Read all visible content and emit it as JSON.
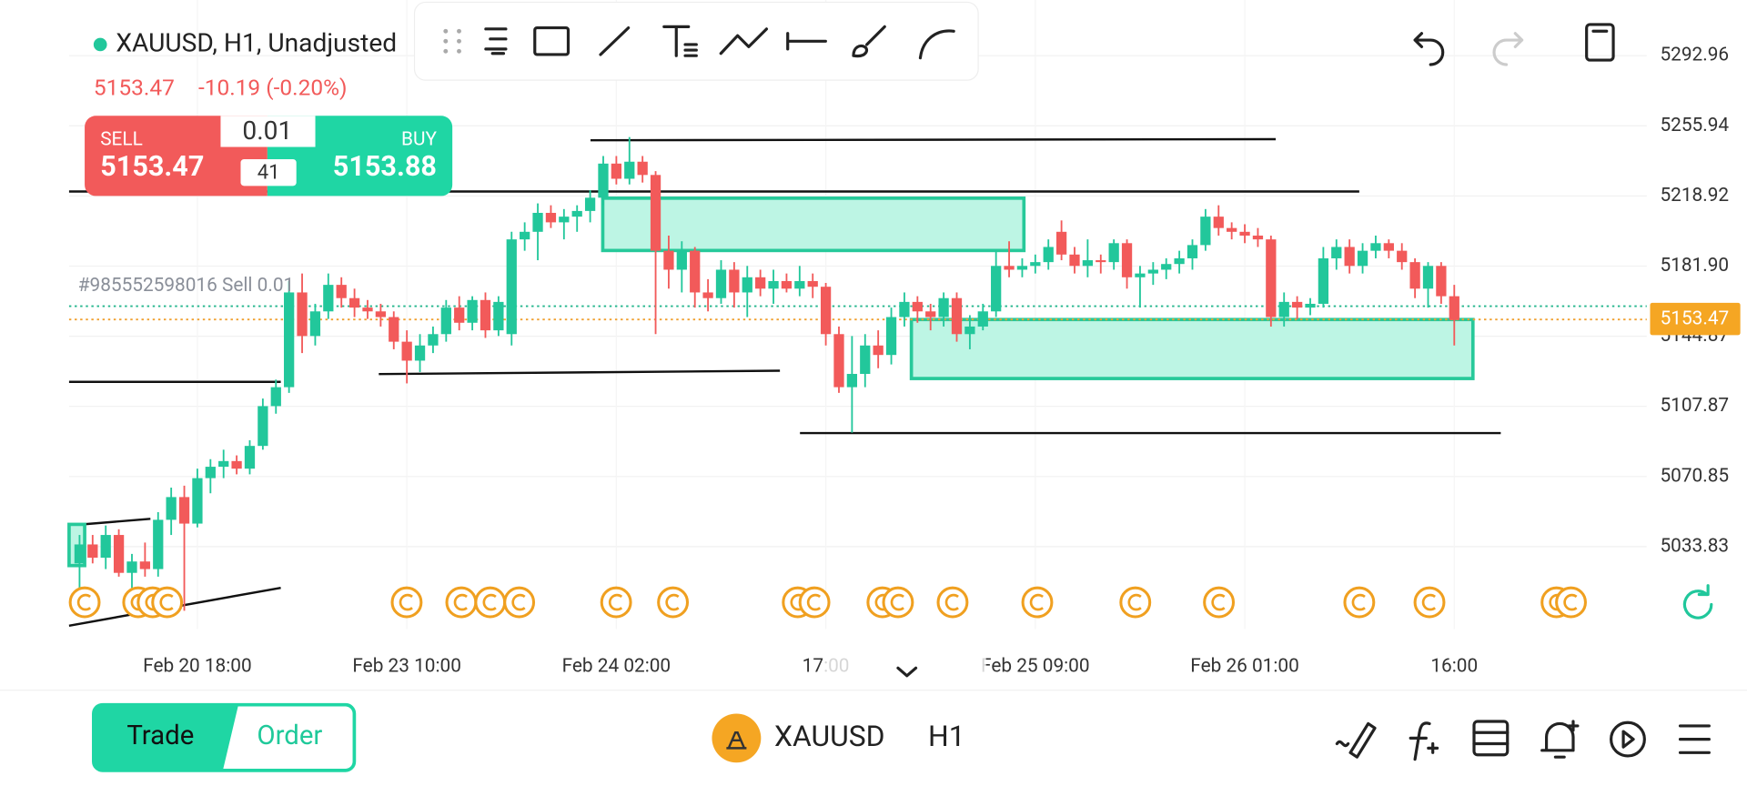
{
  "header": {
    "symbol_title": "XAUUSD, H1, Unadjusted",
    "last_price": "5153.47",
    "change": "-10.19 (-0.20%)"
  },
  "trade_panel": {
    "sell_label": "SELL",
    "sell_price": "5153.47",
    "volume": "0.01",
    "spread": "41",
    "buy_label": "BUY",
    "buy_price": "5153.88"
  },
  "position_label": "#985552598016 Sell 0.01",
  "chart": {
    "type": "candlestick",
    "up_color": "#22c79b",
    "down_color": "#f25a5a",
    "grid": true,
    "ylim": [
      4990.36,
      5322.34
    ],
    "yticks": [
      5292.96,
      5255.94,
      5218.92,
      {
        "value": 5181.9,
        "label": "5181.90"
      },
      5144.87,
      5107.87,
      5070.85,
      5033.83
    ],
    "xlim": [
      -0.8,
      119.7
    ],
    "xticks": [
      {
        "value": 9,
        "label": "Feb 20 18:00"
      },
      {
        "value": 25,
        "label": "Feb 23 10:00"
      },
      {
        "value": 41,
        "label": "Feb 24 02:00"
      },
      {
        "value": 57,
        "label": "17:00"
      },
      {
        "value": 73,
        "label": "Feb 25 09:00"
      },
      {
        "value": 89,
        "label": "Feb 26 01:00"
      },
      {
        "value": 105,
        "label": "16:00"
      }
    ],
    "current_price": 5153.47,
    "candles": [
      [
        5025,
        5040,
        5010,
        5035
      ],
      [
        5035,
        5040,
        5025,
        5028
      ],
      [
        5028,
        5045,
        5022,
        5040
      ],
      [
        5040,
        5043,
        5018,
        5020
      ],
      [
        5020,
        5030,
        5012,
        5026
      ],
      [
        5026,
        5036,
        5018,
        5022
      ],
      [
        5022,
        5052,
        5018,
        5048
      ],
      [
        5048,
        5065,
        5040,
        5060
      ],
      [
        5060,
        5066,
        5000,
        5046
      ],
      [
        5046,
        5075,
        5044,
        5070
      ],
      [
        5070,
        5080,
        5062,
        5076
      ],
      [
        5076,
        5085,
        5070,
        5079
      ],
      [
        5079,
        5082,
        5072,
        5075
      ],
      [
        5075,
        5090,
        5072,
        5087
      ],
      [
        5087,
        5112,
        5085,
        5108
      ],
      [
        5108,
        5122,
        5104,
        5118
      ],
      [
        5118,
        5174,
        5115,
        5168
      ],
      [
        5168,
        5178,
        5136,
        5145
      ],
      [
        5145,
        5162,
        5140,
        5158
      ],
      [
        5158,
        5178,
        5154,
        5172
      ],
      [
        5172,
        5176,
        5160,
        5165
      ],
      [
        5165,
        5170,
        5155,
        5160
      ],
      [
        5160,
        5164,
        5154,
        5158
      ],
      [
        5158,
        5162,
        5150,
        5155
      ],
      [
        5155,
        5158,
        5138,
        5142
      ],
      [
        5142,
        5148,
        5120,
        5132
      ],
      [
        5132,
        5146,
        5126,
        5140
      ],
      [
        5140,
        5150,
        5136,
        5146
      ],
      [
        5146,
        5164,
        5142,
        5160
      ],
      [
        5160,
        5166,
        5148,
        5152
      ],
      [
        5152,
        5166,
        5148,
        5164
      ],
      [
        5164,
        5168,
        5144,
        5148
      ],
      [
        5148,
        5166,
        5145,
        5163
      ],
      [
        5146,
        5200,
        5140,
        5196
      ],
      [
        5196,
        5205,
        5190,
        5200
      ],
      [
        5200,
        5215,
        5185,
        5210
      ],
      [
        5210,
        5214,
        5202,
        5205
      ],
      [
        5205,
        5212,
        5196,
        5208
      ],
      [
        5208,
        5214,
        5200,
        5211
      ],
      [
        5211,
        5222,
        5205,
        5218
      ],
      [
        5218,
        5240,
        5214,
        5236
      ],
      [
        5236,
        5240,
        5225,
        5228
      ],
      [
        5228,
        5250,
        5225,
        5237
      ],
      [
        5237,
        5240,
        5226,
        5230
      ],
      [
        5230,
        5232,
        5146,
        5190
      ],
      [
        5190,
        5198,
        5170,
        5180
      ],
      [
        5180,
        5195,
        5168,
        5190
      ],
      [
        5190,
        5192,
        5160,
        5168
      ],
      [
        5168,
        5175,
        5158,
        5165
      ],
      [
        5165,
        5185,
        5162,
        5180
      ],
      [
        5180,
        5184,
        5160,
        5168
      ],
      [
        5168,
        5182,
        5155,
        5176
      ],
      [
        5176,
        5180,
        5166,
        5170
      ],
      [
        5170,
        5180,
        5162,
        5174
      ],
      [
        5174,
        5178,
        5168,
        5170
      ],
      [
        5170,
        5182,
        5166,
        5174
      ],
      [
        5174,
        5178,
        5165,
        5171
      ],
      [
        5171,
        5173,
        5140,
        5146
      ],
      [
        5146,
        5150,
        5115,
        5118
      ],
      [
        5118,
        5145,
        5094,
        5125
      ],
      [
        5125,
        5146,
        5118,
        5140
      ],
      [
        5140,
        5148,
        5128,
        5135
      ],
      [
        5135,
        5160,
        5130,
        5155
      ],
      [
        5155,
        5168,
        5150,
        5163
      ],
      [
        5163,
        5166,
        5152,
        5158
      ],
      [
        5158,
        5162,
        5148,
        5155
      ],
      [
        5155,
        5168,
        5150,
        5165
      ],
      [
        5165,
        5168,
        5142,
        5146
      ],
      [
        5146,
        5156,
        5138,
        5150
      ],
      [
        5150,
        5162,
        5148,
        5158
      ],
      [
        5158,
        5190,
        5155,
        5182
      ],
      [
        5182,
        5195,
        5176,
        5180
      ],
      [
        5180,
        5186,
        5176,
        5182
      ],
      [
        5182,
        5188,
        5178,
        5184
      ],
      [
        5184,
        5196,
        5180,
        5192
      ],
      [
        5200,
        5206,
        5185,
        5188
      ],
      [
        5188,
        5192,
        5178,
        5182
      ],
      [
        5182,
        5196,
        5176,
        5185
      ],
      [
        5185,
        5188,
        5178,
        5184
      ],
      [
        5184,
        5196,
        5180,
        5194
      ],
      [
        5194,
        5196,
        5170,
        5176
      ],
      [
        5176,
        5182,
        5160,
        5178
      ],
      [
        5178,
        5184,
        5172,
        5180
      ],
      [
        5180,
        5186,
        5175,
        5183
      ],
      [
        5183,
        5190,
        5178,
        5186
      ],
      [
        5186,
        5196,
        5180,
        5193
      ],
      [
        5193,
        5212,
        5190,
        5208
      ],
      [
        5208,
        5214,
        5198,
        5202
      ],
      [
        5202,
        5205,
        5196,
        5200
      ],
      [
        5200,
        5204,
        5194,
        5198
      ],
      [
        5198,
        5202,
        5192,
        5196
      ],
      [
        5196,
        5198,
        5150,
        5155
      ],
      [
        5155,
        5168,
        5150,
        5163
      ],
      [
        5163,
        5166,
        5154,
        5160
      ],
      [
        5160,
        5165,
        5156,
        5162
      ],
      [
        5162,
        5192,
        5160,
        5186
      ],
      [
        5186,
        5196,
        5180,
        5192
      ],
      [
        5192,
        5196,
        5178,
        5182
      ],
      [
        5182,
        5194,
        5178,
        5190
      ],
      [
        5190,
        5198,
        5186,
        5194
      ],
      [
        5194,
        5196,
        5186,
        5190
      ],
      [
        5190,
        5194,
        5180,
        5184
      ],
      [
        5184,
        5186,
        5165,
        5170
      ],
      [
        5170,
        5184,
        5160,
        5182
      ],
      [
        5182,
        5184,
        5162,
        5166
      ],
      [
        5166,
        5172,
        5140,
        5153.47
      ]
    ]
  },
  "footer": {
    "tabs": [
      "Trade",
      "Order"
    ],
    "symbol": "XAUUSD",
    "timeframe": "H1"
  }
}
